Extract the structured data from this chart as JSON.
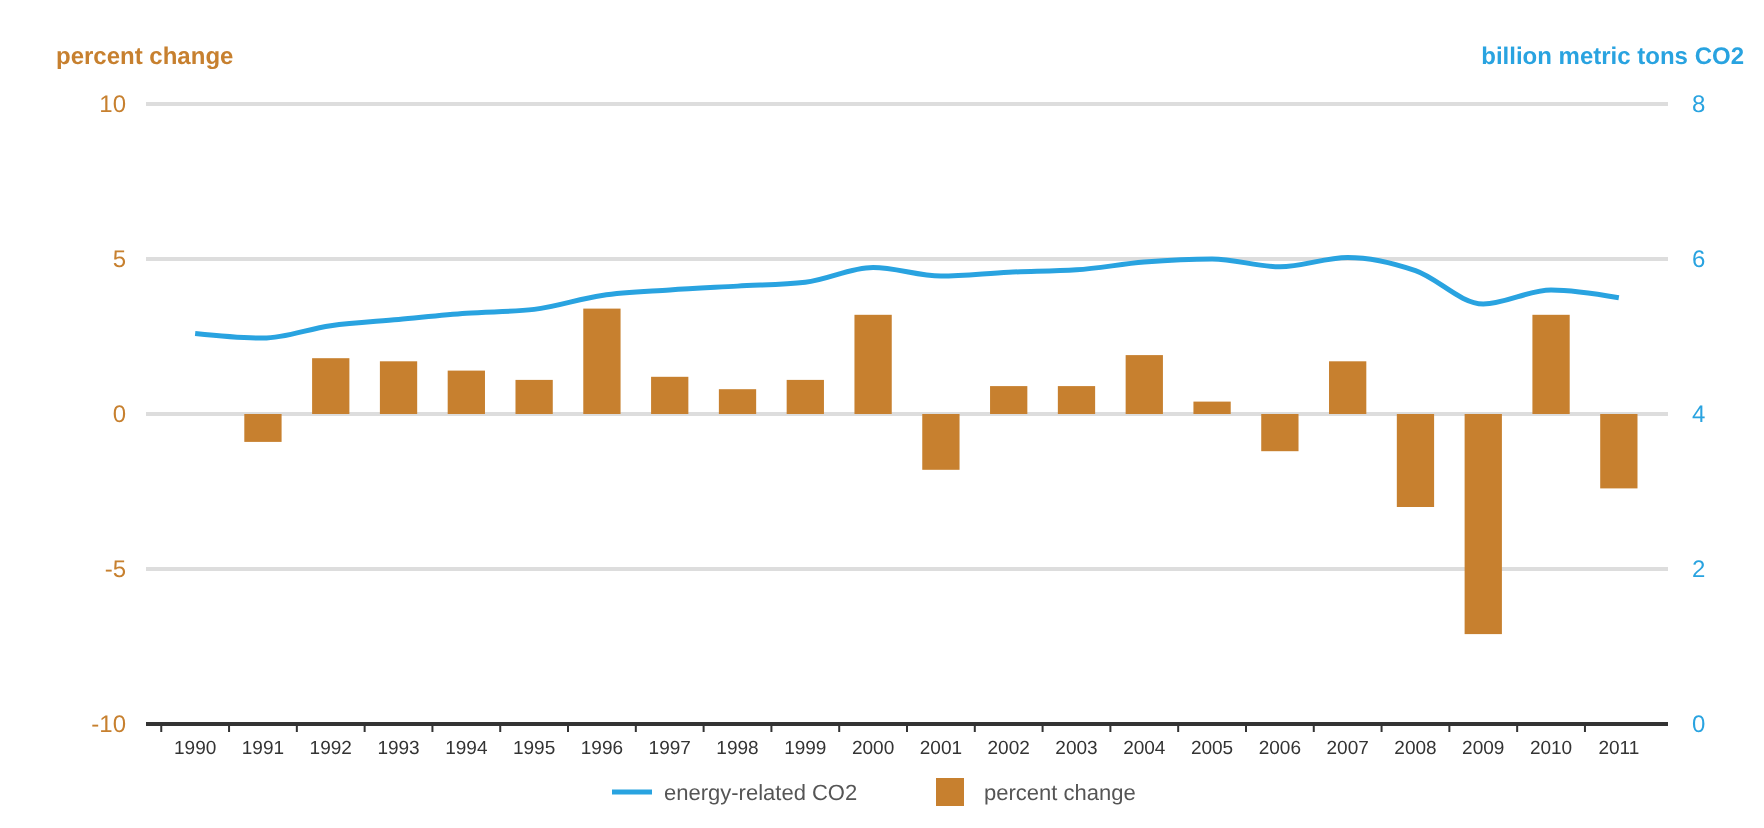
{
  "chart_data": {
    "type": "bar",
    "ylabel": "percent change",
    "y2label": "billion metric tons CO2",
    "categories": [
      "1990",
      "1991",
      "1992",
      "1993",
      "1994",
      "1995",
      "1996",
      "1997",
      "1998",
      "1999",
      "2000",
      "2001",
      "2002",
      "2003",
      "2004",
      "2005",
      "2006",
      "2007",
      "2008",
      "2009",
      "2010",
      "2011"
    ],
    "series": [
      {
        "name": "energy-related CO2",
        "type": "line",
        "axis": "y2",
        "color": "#29a3e0",
        "values": [
          5.04,
          4.98,
          5.14,
          5.22,
          5.3,
          5.35,
          5.53,
          5.6,
          5.65,
          5.7,
          5.89,
          5.78,
          5.83,
          5.86,
          5.96,
          6.0,
          5.9,
          6.02,
          5.85,
          5.42,
          5.6,
          5.5
        ]
      },
      {
        "name": "percent change",
        "color": "#c7802f",
        "values": [
          null,
          -0.9,
          1.8,
          1.7,
          1.4,
          1.1,
          3.4,
          1.2,
          0.8,
          1.1,
          3.2,
          -1.8,
          0.9,
          0.9,
          1.9,
          0.4,
          -1.2,
          1.7,
          -3.0,
          -7.1,
          3.2,
          -2.4
        ]
      }
    ],
    "ylim": [
      -10,
      10
    ],
    "yticks": [
      -10,
      -5,
      0,
      5,
      10
    ],
    "y2lim": [
      0,
      8
    ],
    "y2ticks": [
      0,
      2,
      4,
      6,
      8
    ],
    "grid": "y",
    "legend": "bottom"
  }
}
